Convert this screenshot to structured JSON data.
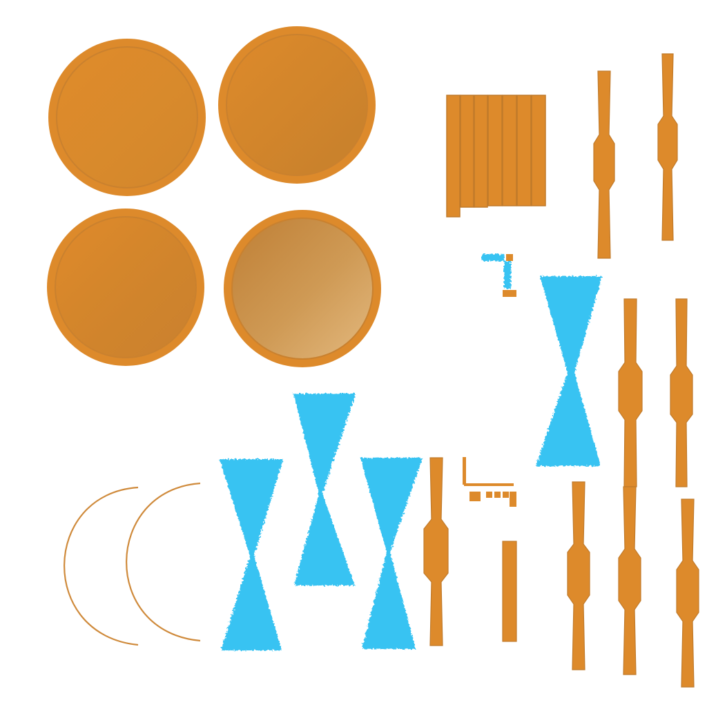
{
  "colors": {
    "background": "#ffffff",
    "wood_orange": "#dd8a2b",
    "wood_dark": "#c9812f",
    "wood_light": "#e2b277",
    "wood_edge": "#c07a2b",
    "glass_blue": "#38c3f2"
  },
  "icons": {
    "disc": "round-disc-texture",
    "hourglass": "hourglass-glass-texture",
    "rod": "turned-rod-texture",
    "arc": "curved-arc-strip"
  }
}
